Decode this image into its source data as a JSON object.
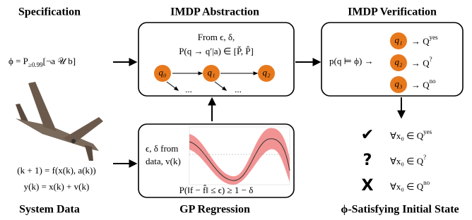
{
  "headings": {
    "specification": "Specification",
    "abstraction": "IMDP Abstraction",
    "verification": "IMDP Verification",
    "system_data": "System Data",
    "gp_regression": "GP Regression",
    "initial_state": "ϕ-Satisfying Initial State"
  },
  "specification": {
    "lhs": "ϕ = P",
    "sub": "≥0.99",
    "rhs": "[¬a 𝒰 b]"
  },
  "abstraction": {
    "line1": "From ϵ,  δ,",
    "line2": "P(q → q′|a) ∈ [P̌, P̂]",
    "nodes": [
      "q₀",
      "q₁",
      "q₂"
    ],
    "ellipses": [
      "...",
      "..."
    ]
  },
  "verification": {
    "query": "p(q ⊨ ϕ) →",
    "rows": [
      {
        "node": "q₁",
        "target": "→ Q",
        "sup": "yes"
      },
      {
        "node": "q₂",
        "target": "→ Q",
        "sup": "?"
      },
      {
        "node": "q₃",
        "target": "→ Q",
        "sup": "no"
      }
    ]
  },
  "system": {
    "eq1": "(k + 1) = f(x(k), a(k))",
    "eq2": "y(k) = x(k) + v(k)"
  },
  "gp": {
    "label1": "ϵ,  δ  from",
    "label2": "data,  v(k)",
    "bound": "P(‖f − f̂‖ ≤ ϵ) ≥ 1 − δ"
  },
  "results": [
    {
      "symbol": "✔",
      "text": "∀x₀ ∈ Q",
      "sup": "yes"
    },
    {
      "symbol": "?",
      "text": "∀x₀ ∈ Q",
      "sup": "?"
    },
    {
      "symbol": "X",
      "text": "∀x₀ ∈ Q",
      "sup": "no"
    }
  ]
}
